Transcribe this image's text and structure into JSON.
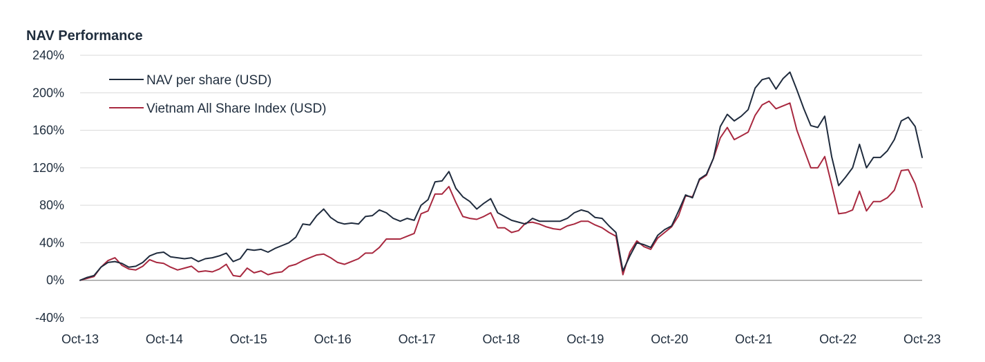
{
  "chart_data": {
    "type": "line",
    "title": "NAV Performance",
    "xlabel": "",
    "ylabel": "",
    "ylim": [
      -40,
      240
    ],
    "yticks": [
      -40,
      0,
      40,
      80,
      120,
      160,
      200,
      240
    ],
    "ytick_labels": [
      "-40%",
      "0%",
      "40%",
      "80%",
      "120%",
      "160%",
      "200%",
      "240%"
    ],
    "xtick_labels": [
      "Oct-13",
      "Oct-14",
      "Oct-15",
      "Oct-16",
      "Oct-17",
      "Oct-18",
      "Oct-19",
      "Oct-20",
      "Oct-21",
      "Oct-22",
      "Oct-23"
    ],
    "x_start_month": 0,
    "x_end_month": 120,
    "grid": true,
    "legend_position": "top-left",
    "series": [
      {
        "name": "NAV per share (USD)",
        "color": "#1f2b3d",
        "values": [
          0,
          3,
          5,
          14,
          19,
          20,
          18,
          14,
          15,
          19,
          26,
          29,
          30,
          25,
          24,
          23,
          24,
          20,
          23,
          24,
          26,
          29,
          20,
          23,
          33,
          32,
          33,
          30,
          34,
          37,
          40,
          46,
          60,
          59,
          69,
          76,
          67,
          62,
          60,
          61,
          60,
          68,
          69,
          75,
          72,
          66,
          63,
          66,
          64,
          80,
          86,
          105,
          106,
          116,
          98,
          89,
          84,
          76,
          82,
          87,
          72,
          68,
          64,
          62,
          60,
          66,
          63,
          63,
          63,
          63,
          66,
          72,
          75,
          73,
          67,
          66,
          58,
          51,
          10,
          26,
          40,
          38,
          35,
          48,
          54,
          58,
          74,
          91,
          88,
          108,
          113,
          130,
          164,
          177,
          170,
          175,
          182,
          205,
          214,
          216,
          204,
          215,
          222,
          203,
          183,
          165,
          163,
          175,
          132,
          101,
          110,
          120,
          145,
          120,
          131,
          131,
          138,
          150,
          170,
          174,
          164,
          131
        ]
      },
      {
        "name": "Vietnam All Share Index (USD)",
        "color": "#a8283f",
        "values": [
          0,
          2,
          4,
          14,
          21,
          24,
          16,
          12,
          11,
          15,
          22,
          19,
          18,
          14,
          11,
          13,
          15,
          9,
          10,
          9,
          12,
          17,
          5,
          4,
          13,
          8,
          10,
          6,
          8,
          9,
          15,
          17,
          21,
          24,
          27,
          28,
          24,
          19,
          17,
          20,
          23,
          29,
          29,
          35,
          44,
          44,
          44,
          47,
          50,
          71,
          74,
          92,
          92,
          100,
          83,
          68,
          66,
          65,
          68,
          72,
          56,
          56,
          51,
          53,
          61,
          62,
          60,
          57,
          55,
          54,
          58,
          60,
          63,
          63,
          59,
          56,
          51,
          47,
          6,
          30,
          42,
          36,
          33,
          45,
          51,
          57,
          69,
          90,
          89,
          107,
          112,
          130,
          152,
          163,
          150,
          154,
          158,
          176,
          187,
          191,
          183,
          186,
          189,
          160,
          140,
          120,
          120,
          132,
          102,
          71,
          72,
          75,
          95,
          74,
          84,
          84,
          88,
          96,
          117,
          118,
          103,
          78
        ]
      }
    ]
  }
}
